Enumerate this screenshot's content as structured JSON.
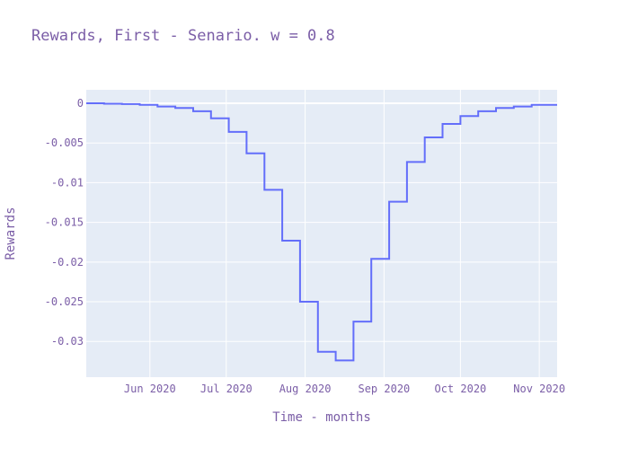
{
  "chart_data": {
    "type": "line",
    "line_shape": "step",
    "title": "Rewards, First - Senario. w = 0.8",
    "xlabel": "Time - months",
    "ylabel": "Rewards",
    "xlim": [
      "2020-05-07",
      "2020-11-08"
    ],
    "ylim": [
      -0.0345,
      0.0017
    ],
    "x_tick_labels": [
      "Jun 2020",
      "Jul 2020",
      "Aug 2020",
      "Sep 2020",
      "Oct 2020",
      "Nov 2020"
    ],
    "x_tick_dates": [
      "2020-06-01",
      "2020-07-01",
      "2020-08-01",
      "2020-09-01",
      "2020-10-01",
      "2020-11-01"
    ],
    "y_ticks": [
      0,
      -0.005,
      -0.01,
      -0.015,
      -0.02,
      -0.025,
      -0.03
    ],
    "y_tick_labels": [
      "0",
      "-0.005",
      "-0.01",
      "-0.015",
      "-0.02",
      "-0.025",
      "-0.03"
    ],
    "grid": true,
    "line_color": "#636efa",
    "background_color": "#e5ecf6",
    "series": [
      {
        "x": [
          "2020-05-07",
          "2020-05-14",
          "2020-05-21",
          "2020-05-28",
          "2020-06-04",
          "2020-06-11",
          "2020-06-18",
          "2020-06-25",
          "2020-07-02",
          "2020-07-09",
          "2020-07-16",
          "2020-07-23",
          "2020-07-30",
          "2020-08-06",
          "2020-08-13",
          "2020-08-20",
          "2020-08-27",
          "2020-09-03",
          "2020-09-10",
          "2020-09-17",
          "2020-09-24",
          "2020-10-01",
          "2020-10-08",
          "2020-10-15",
          "2020-10-22",
          "2020-10-29",
          "2020-11-05"
        ],
        "y": [
          0.0,
          -5e-05,
          -0.0001,
          -0.0002,
          -0.0004,
          -0.0006,
          -0.001,
          -0.0019,
          -0.0036,
          -0.0063,
          -0.0109,
          -0.0173,
          -0.025,
          -0.0313,
          -0.0324,
          -0.0275,
          -0.0196,
          -0.0124,
          -0.0074,
          -0.0043,
          -0.0026,
          -0.0016,
          -0.001,
          -0.0006,
          -0.0004,
          -0.0002,
          -0.0002
        ]
      }
    ]
  }
}
